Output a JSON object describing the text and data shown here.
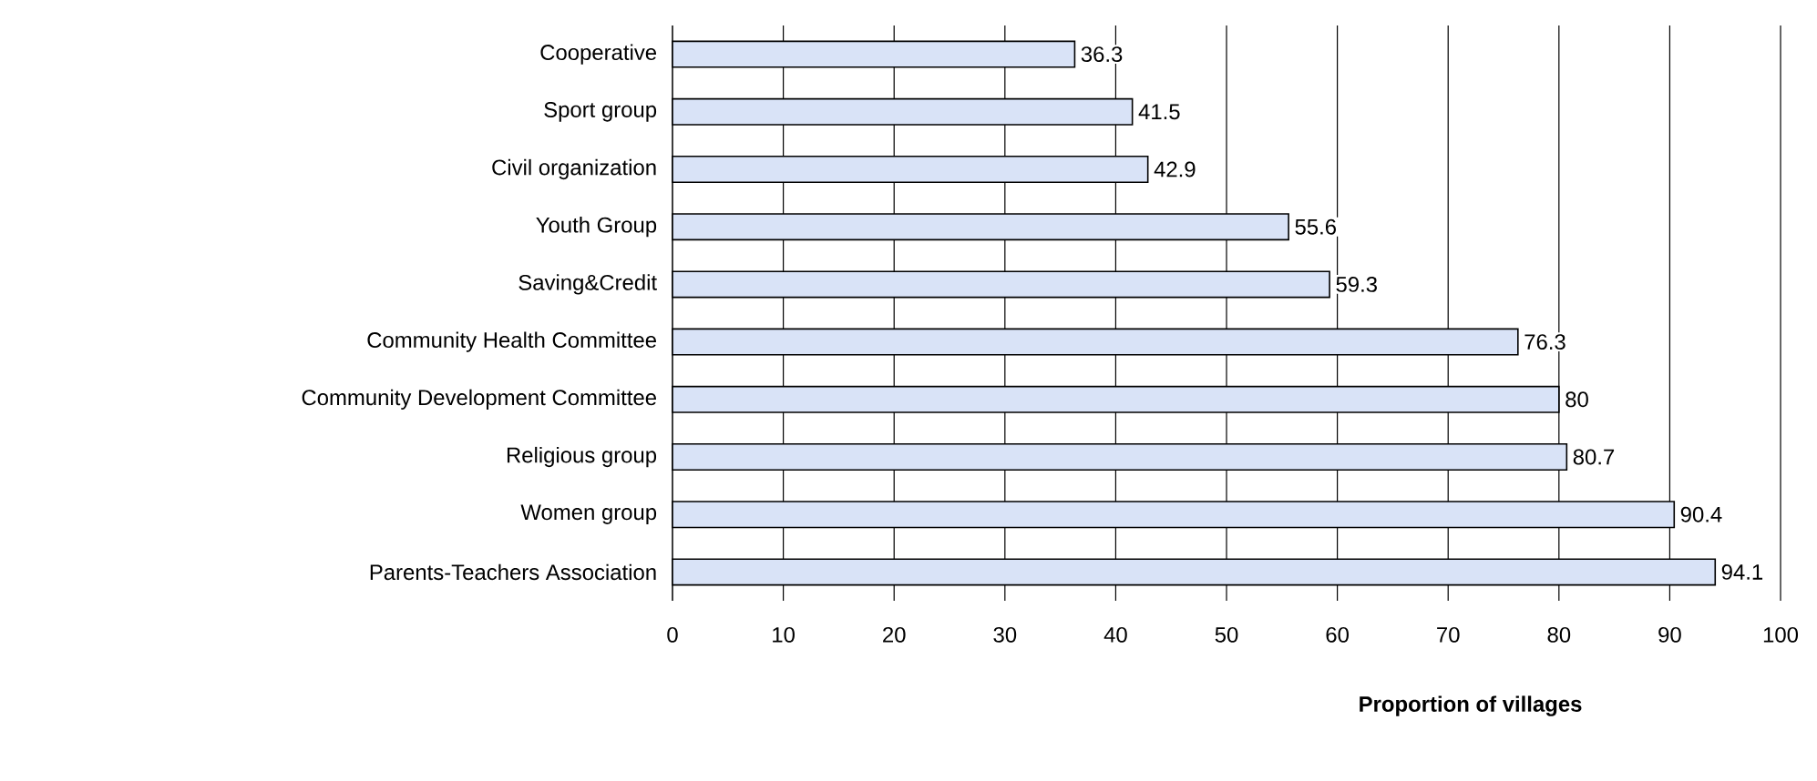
{
  "chart_data": {
    "type": "bar",
    "orientation": "horizontal",
    "xlabel": "Proportion of villages",
    "categories": [
      "Cooperative",
      "Sport group",
      "Civil organization",
      "Youth Group",
      "Saving&Credit",
      "Community Health Committee",
      "Community Development Committee",
      "Religious group",
      "Women group",
      "Parents-Teachers Association"
    ],
    "values": [
      36.3,
      41.5,
      42.9,
      55.6,
      59.3,
      76.3,
      80,
      80.7,
      90.4,
      94.1
    ],
    "color": "#d9e3f7",
    "data_labels": true,
    "grid": "x",
    "xlim": [
      0,
      100
    ],
    "xticks": [
      0,
      10,
      20,
      30,
      40,
      50,
      60,
      70,
      80,
      90,
      100
    ]
  }
}
